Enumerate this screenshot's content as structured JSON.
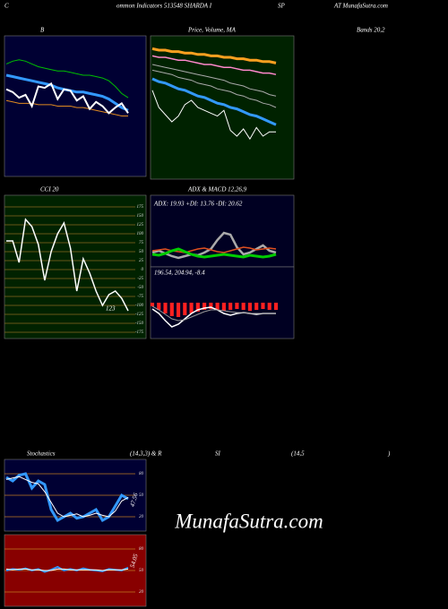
{
  "header": [
    "C",
    "ommon Indicators 513548 SHARDA I",
    "SP",
    "AT MunafaSutra.com"
  ],
  "watermark": "MunafaSutra.com",
  "chart_data": [
    {
      "type": "line",
      "title_parts": [
        "B",
        "Bands 20,2"
      ],
      "background": "#000033",
      "ylim": [
        0,
        100
      ],
      "series": [
        {
          "color": "#00c000",
          "width": 1,
          "values": [
            80,
            82,
            83,
            82,
            80,
            78,
            77,
            76,
            75,
            75,
            74,
            73,
            72,
            72,
            71,
            70,
            68,
            64,
            59,
            56
          ]
        },
        {
          "color": "#3399ff",
          "width": 3,
          "values": [
            72,
            71,
            70,
            69,
            68,
            67,
            66,
            65,
            63,
            62,
            61,
            60,
            60,
            59,
            58,
            57,
            55,
            52,
            49,
            47
          ]
        },
        {
          "color": "#e08a20",
          "width": 1,
          "values": [
            54,
            53,
            52,
            52,
            52,
            51,
            51,
            51,
            50,
            50,
            50,
            49,
            49,
            48,
            47,
            46,
            45,
            44,
            43,
            43
          ]
        },
        {
          "color": "#ffffff",
          "width": 2,
          "values": [
            62,
            60,
            56,
            58,
            50,
            64,
            63,
            66,
            55,
            62,
            61,
            54,
            57,
            48,
            53,
            50,
            45,
            49,
            52,
            45
          ]
        }
      ]
    },
    {
      "type": "line",
      "title_parts": [
        "Price, Volume, MA"
      ],
      "background": "#002200",
      "ylim": [
        0,
        100
      ],
      "series": [
        {
          "color": "#ffa020",
          "width": 3,
          "values": [
            91,
            90,
            90,
            89,
            89,
            88,
            88,
            87,
            87,
            86,
            86,
            85,
            85,
            84,
            84,
            83,
            83,
            82,
            82,
            81
          ]
        },
        {
          "color": "#ff88cc",
          "width": 1.5,
          "values": [
            86,
            85,
            85,
            84,
            83,
            83,
            82,
            81,
            80,
            80,
            79,
            78,
            78,
            77,
            76,
            76,
            75,
            74,
            74,
            73
          ]
        },
        {
          "color": "#aaaaaa",
          "width": 1,
          "values": [
            80,
            79,
            78,
            77,
            76,
            75,
            74,
            73,
            72,
            71,
            70,
            69,
            67,
            66,
            65,
            63,
            62,
            61,
            59,
            58
          ]
        },
        {
          "color": "#aaaaaa",
          "width": 1,
          "values": [
            76,
            75,
            74,
            73,
            71,
            70,
            69,
            67,
            66,
            65,
            63,
            62,
            61,
            59,
            58,
            56,
            55,
            53,
            52,
            50
          ]
        },
        {
          "color": "#3399ff",
          "width": 3,
          "values": [
            70,
            68,
            67,
            65,
            63,
            62,
            60,
            58,
            57,
            55,
            53,
            52,
            50,
            49,
            47,
            45,
            44,
            42,
            40,
            38
          ]
        },
        {
          "color": "#ffffff",
          "width": 1,
          "values": [
            62,
            50,
            45,
            40,
            44,
            52,
            55,
            50,
            48,
            46,
            44,
            48,
            34,
            30,
            35,
            28,
            36,
            30,
            33,
            33
          ]
        }
      ]
    },
    {
      "type": "line",
      "title_parts": [
        "CCI 20"
      ],
      "background": "#002200",
      "ylim": [
        -192.5,
        207.5
      ],
      "yticks": [
        175,
        150,
        125,
        100,
        75,
        50,
        25,
        0,
        -25,
        -50,
        -75,
        -100,
        -125,
        -150,
        -175
      ],
      "grid_color": "#8a6a20",
      "annotation": "123",
      "series": [
        {
          "color": "#ffffff",
          "width": 1.5,
          "values": [
            80,
            80,
            20,
            140,
            120,
            70,
            -30,
            50,
            100,
            130,
            60,
            -60,
            30,
            -10,
            -60,
            -100,
            -70,
            -60,
            -80,
            -115
          ]
        }
      ]
    },
    {
      "type": "line",
      "title_parts": [
        "ADX  & MACD 12,26,9"
      ],
      "background": "#000022",
      "ylim": [
        0,
        80
      ],
      "annotation": "ADX: 19.93 +DI: 13.76 -DI: 20.62",
      "series": [
        {
          "color": "#aaaaaa",
          "width": 2.5,
          "values": [
            16,
            18,
            15,
            12,
            10,
            12,
            14,
            13,
            16,
            20,
            30,
            38,
            36,
            22,
            14,
            16,
            20,
            24,
            18,
            16
          ]
        },
        {
          "color": "#e05020",
          "width": 1.5,
          "values": [
            18,
            19,
            20,
            18,
            17,
            16,
            18,
            20,
            21,
            19,
            17,
            16,
            18,
            20,
            22,
            21,
            19,
            20,
            21,
            20
          ]
        },
        {
          "color": "#00cc00",
          "width": 3,
          "values": [
            14,
            13,
            15,
            18,
            20,
            17,
            14,
            12,
            11,
            12,
            13,
            14,
            13,
            12,
            11,
            13,
            12,
            11,
            12,
            14
          ]
        }
      ]
    },
    {
      "type": "bar",
      "title_parts": [],
      "background": "#000022",
      "ylim": [
        -40,
        40
      ],
      "annotation": "196.54, 204.94, -8.4",
      "bars": {
        "color": "#ff2020",
        "values": [
          -4,
          -8,
          -12,
          -15,
          -16,
          -14,
          -12,
          -10,
          -8,
          -7,
          -8,
          -9,
          -8,
          -7,
          -8,
          -9,
          -8,
          -7,
          -8,
          -8
        ]
      },
      "series": [
        {
          "color": "#ffffff",
          "width": 1.5,
          "values": [
            -7,
            -12,
            -20,
            -27,
            -24,
            -18,
            -12,
            -8,
            -6,
            -5,
            -8,
            -12,
            -14,
            -12,
            -11,
            -12,
            -13,
            -12,
            -12,
            -12
          ]
        },
        {
          "color": "#999999",
          "width": 1,
          "values": [
            -4,
            -8,
            -13,
            -18,
            -20,
            -19,
            -16,
            -13,
            -10,
            -8,
            -8,
            -9,
            -10,
            -11,
            -11,
            -12,
            -12,
            -12,
            -12,
            -12
          ]
        }
      ]
    },
    {
      "type": "line",
      "title_parts": [
        "Stochastics",
        "(14,3,3) & R"
      ],
      "background": "#000033",
      "ylim": [
        0,
        100
      ],
      "yticks": [
        80,
        50,
        20
      ],
      "grid_color": "#c07a20",
      "annotation": "47.56",
      "series": [
        {
          "color": "#3399ff",
          "width": 3,
          "values": [
            75,
            70,
            78,
            80,
            60,
            70,
            65,
            30,
            15,
            20,
            25,
            18,
            20,
            25,
            30,
            15,
            20,
            35,
            50,
            45
          ]
        },
        {
          "color": "#ffffff",
          "width": 1,
          "values": [
            72,
            74,
            76,
            72,
            68,
            66,
            55,
            40,
            25,
            20,
            22,
            24,
            20,
            22,
            25,
            22,
            20,
            28,
            42,
            47
          ]
        }
      ]
    },
    {
      "type": "line",
      "title_parts": [
        "SI",
        "(14,5",
        ")"
      ],
      "background": "#880000",
      "ylim": [
        0,
        100
      ],
      "yticks": [
        80,
        50,
        20
      ],
      "grid_color": "#c07a20",
      "annotation": "54.05",
      "series": [
        {
          "color": "#3399ff",
          "width": 2,
          "values": [
            50,
            52,
            51,
            53,
            50,
            52,
            48,
            51,
            55,
            50,
            52,
            50,
            53,
            51,
            50,
            49,
            52,
            51,
            50,
            54
          ]
        },
        {
          "color": "#ffffff",
          "width": 1,
          "values": [
            52,
            51,
            52,
            52,
            51,
            51,
            50,
            50,
            52,
            52,
            51,
            51,
            51,
            51,
            51,
            50,
            51,
            51,
            51,
            52
          ]
        }
      ]
    }
  ]
}
